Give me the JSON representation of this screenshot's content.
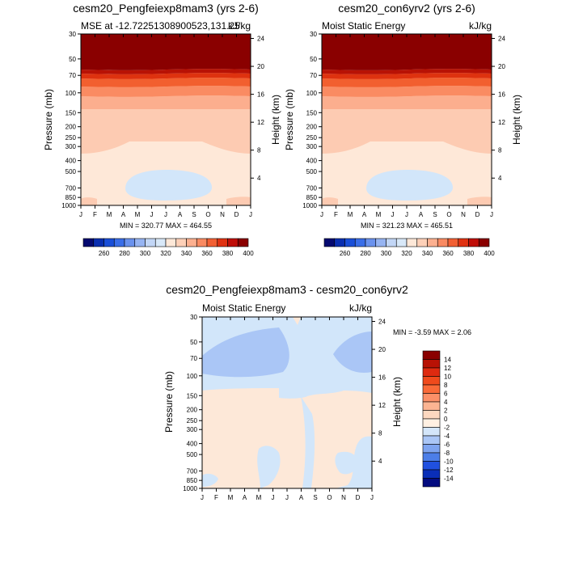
{
  "figure": {
    "month_labels": [
      "J",
      "F",
      "M",
      "A",
      "M",
      "J",
      "J",
      "A",
      "S",
      "O",
      "N",
      "D",
      "J"
    ],
    "pressure_ticks": [
      30,
      50,
      70,
      100,
      150,
      200,
      250,
      300,
      400,
      500,
      700,
      850,
      1000
    ],
    "height_ticks": [
      4,
      8,
      12,
      16,
      20,
      24
    ],
    "ylabel_left": "Pressure (mb)",
    "ylabel_right": "Height (km)"
  },
  "chart_data": [
    {
      "type": "heatmap",
      "title": "cesm20_Pengfeiexp8mam3 (yrs 2-6)",
      "subtitle_left": "MSE at -12.72251308900523,131.25",
      "subtitle_right": "kJ/kg",
      "stats": "MIN = 320.77 MAX = 464.55",
      "colorbar": {
        "orientation": "horizontal",
        "labels": [
          "260",
          "280",
          "300",
          "320",
          "340",
          "360",
          "380",
          "400"
        ],
        "colors": [
          "#050a70",
          "#0a2fb0",
          "#1a4fd8",
          "#3a6ee8",
          "#6a92ee",
          "#96b4f2",
          "#c2d6f6",
          "#d8e8f8",
          "#fde8d8",
          "#fdd0b8",
          "#fcb090",
          "#f98a62",
          "#f26034",
          "#e03212",
          "#c00e08",
          "#8a0000"
        ]
      },
      "bands": [
        {
          "level": "> 400",
          "color": "#8a0000"
        },
        {
          "level": "390-400",
          "color": "#b81205"
        },
        {
          "level": "380-390",
          "color": "#de320f"
        },
        {
          "level": "370-380",
          "color": "#f25f2f"
        },
        {
          "level": "360-370",
          "color": "#fa8b62"
        },
        {
          "level": "350-360",
          "color": "#fcae8e"
        },
        {
          "level": "340-350",
          "color": "#fdcbb2"
        },
        {
          "level": "330-340",
          "color": "#fee8d8"
        },
        {
          "level": "320-330",
          "color": "#d2e6fa"
        }
      ]
    },
    {
      "type": "heatmap",
      "title": "cesm20_con6yrv2 (yrs 2-6)",
      "subtitle_left": "Moist Static Energy",
      "subtitle_right": "kJ/kg",
      "stats": "MIN = 321.23 MAX = 465.51",
      "colorbar": {
        "orientation": "horizontal",
        "labels": [
          "260",
          "280",
          "300",
          "320",
          "340",
          "360",
          "380",
          "400"
        ],
        "colors": [
          "#050a70",
          "#0a2fb0",
          "#1a4fd8",
          "#3a6ee8",
          "#6a92ee",
          "#96b4f2",
          "#c2d6f6",
          "#d8e8f8",
          "#fde8d8",
          "#fdd0b8",
          "#fcb090",
          "#f98a62",
          "#f26034",
          "#e03212",
          "#c00e08",
          "#8a0000"
        ]
      },
      "bands": [
        {
          "level": "> 400",
          "color": "#8a0000"
        },
        {
          "level": "390-400",
          "color": "#b81205"
        },
        {
          "level": "380-390",
          "color": "#de320f"
        },
        {
          "level": "370-380",
          "color": "#f25f2f"
        },
        {
          "level": "360-370",
          "color": "#fa8b62"
        },
        {
          "level": "350-360",
          "color": "#fcae8e"
        },
        {
          "level": "340-350",
          "color": "#fdcbb2"
        },
        {
          "level": "330-340",
          "color": "#fee8d8"
        },
        {
          "level": "320-330",
          "color": "#d2e6fa"
        }
      ]
    },
    {
      "type": "heatmap",
      "title": "cesm20_Pengfeiexp8mam3 - cesm20_con6yrv2",
      "subtitle_left": "Moist Static Energy",
      "subtitle_right": "kJ/kg",
      "stats": "MIN =  -3.59 MAX =   2.06",
      "colorbar": {
        "orientation": "vertical",
        "labels": [
          "14",
          "12",
          "10",
          "8",
          "6",
          "4",
          "2",
          "0",
          "-2",
          "-4",
          "-6",
          "-8",
          "-10",
          "-12",
          "-14"
        ],
        "colors": [
          "#8a0000",
          "#b81205",
          "#de2a10",
          "#f04a1c",
          "#fa6a38",
          "#fc9068",
          "#fcb492",
          "#fdd8c0",
          "#fff0e2",
          "#d4e6fa",
          "#aac6f6",
          "#7ea4f0",
          "#4c7ee8",
          "#2050e0",
          "#0a2eb8",
          "#040c80"
        ]
      },
      "bands": [
        {
          "level": "0-2",
          "color": "#fde8d8"
        },
        {
          "level": "-2-0",
          "color": "#d2e6fa"
        },
        {
          "level": "-4--2",
          "color": "#aac6f6"
        }
      ]
    }
  ]
}
